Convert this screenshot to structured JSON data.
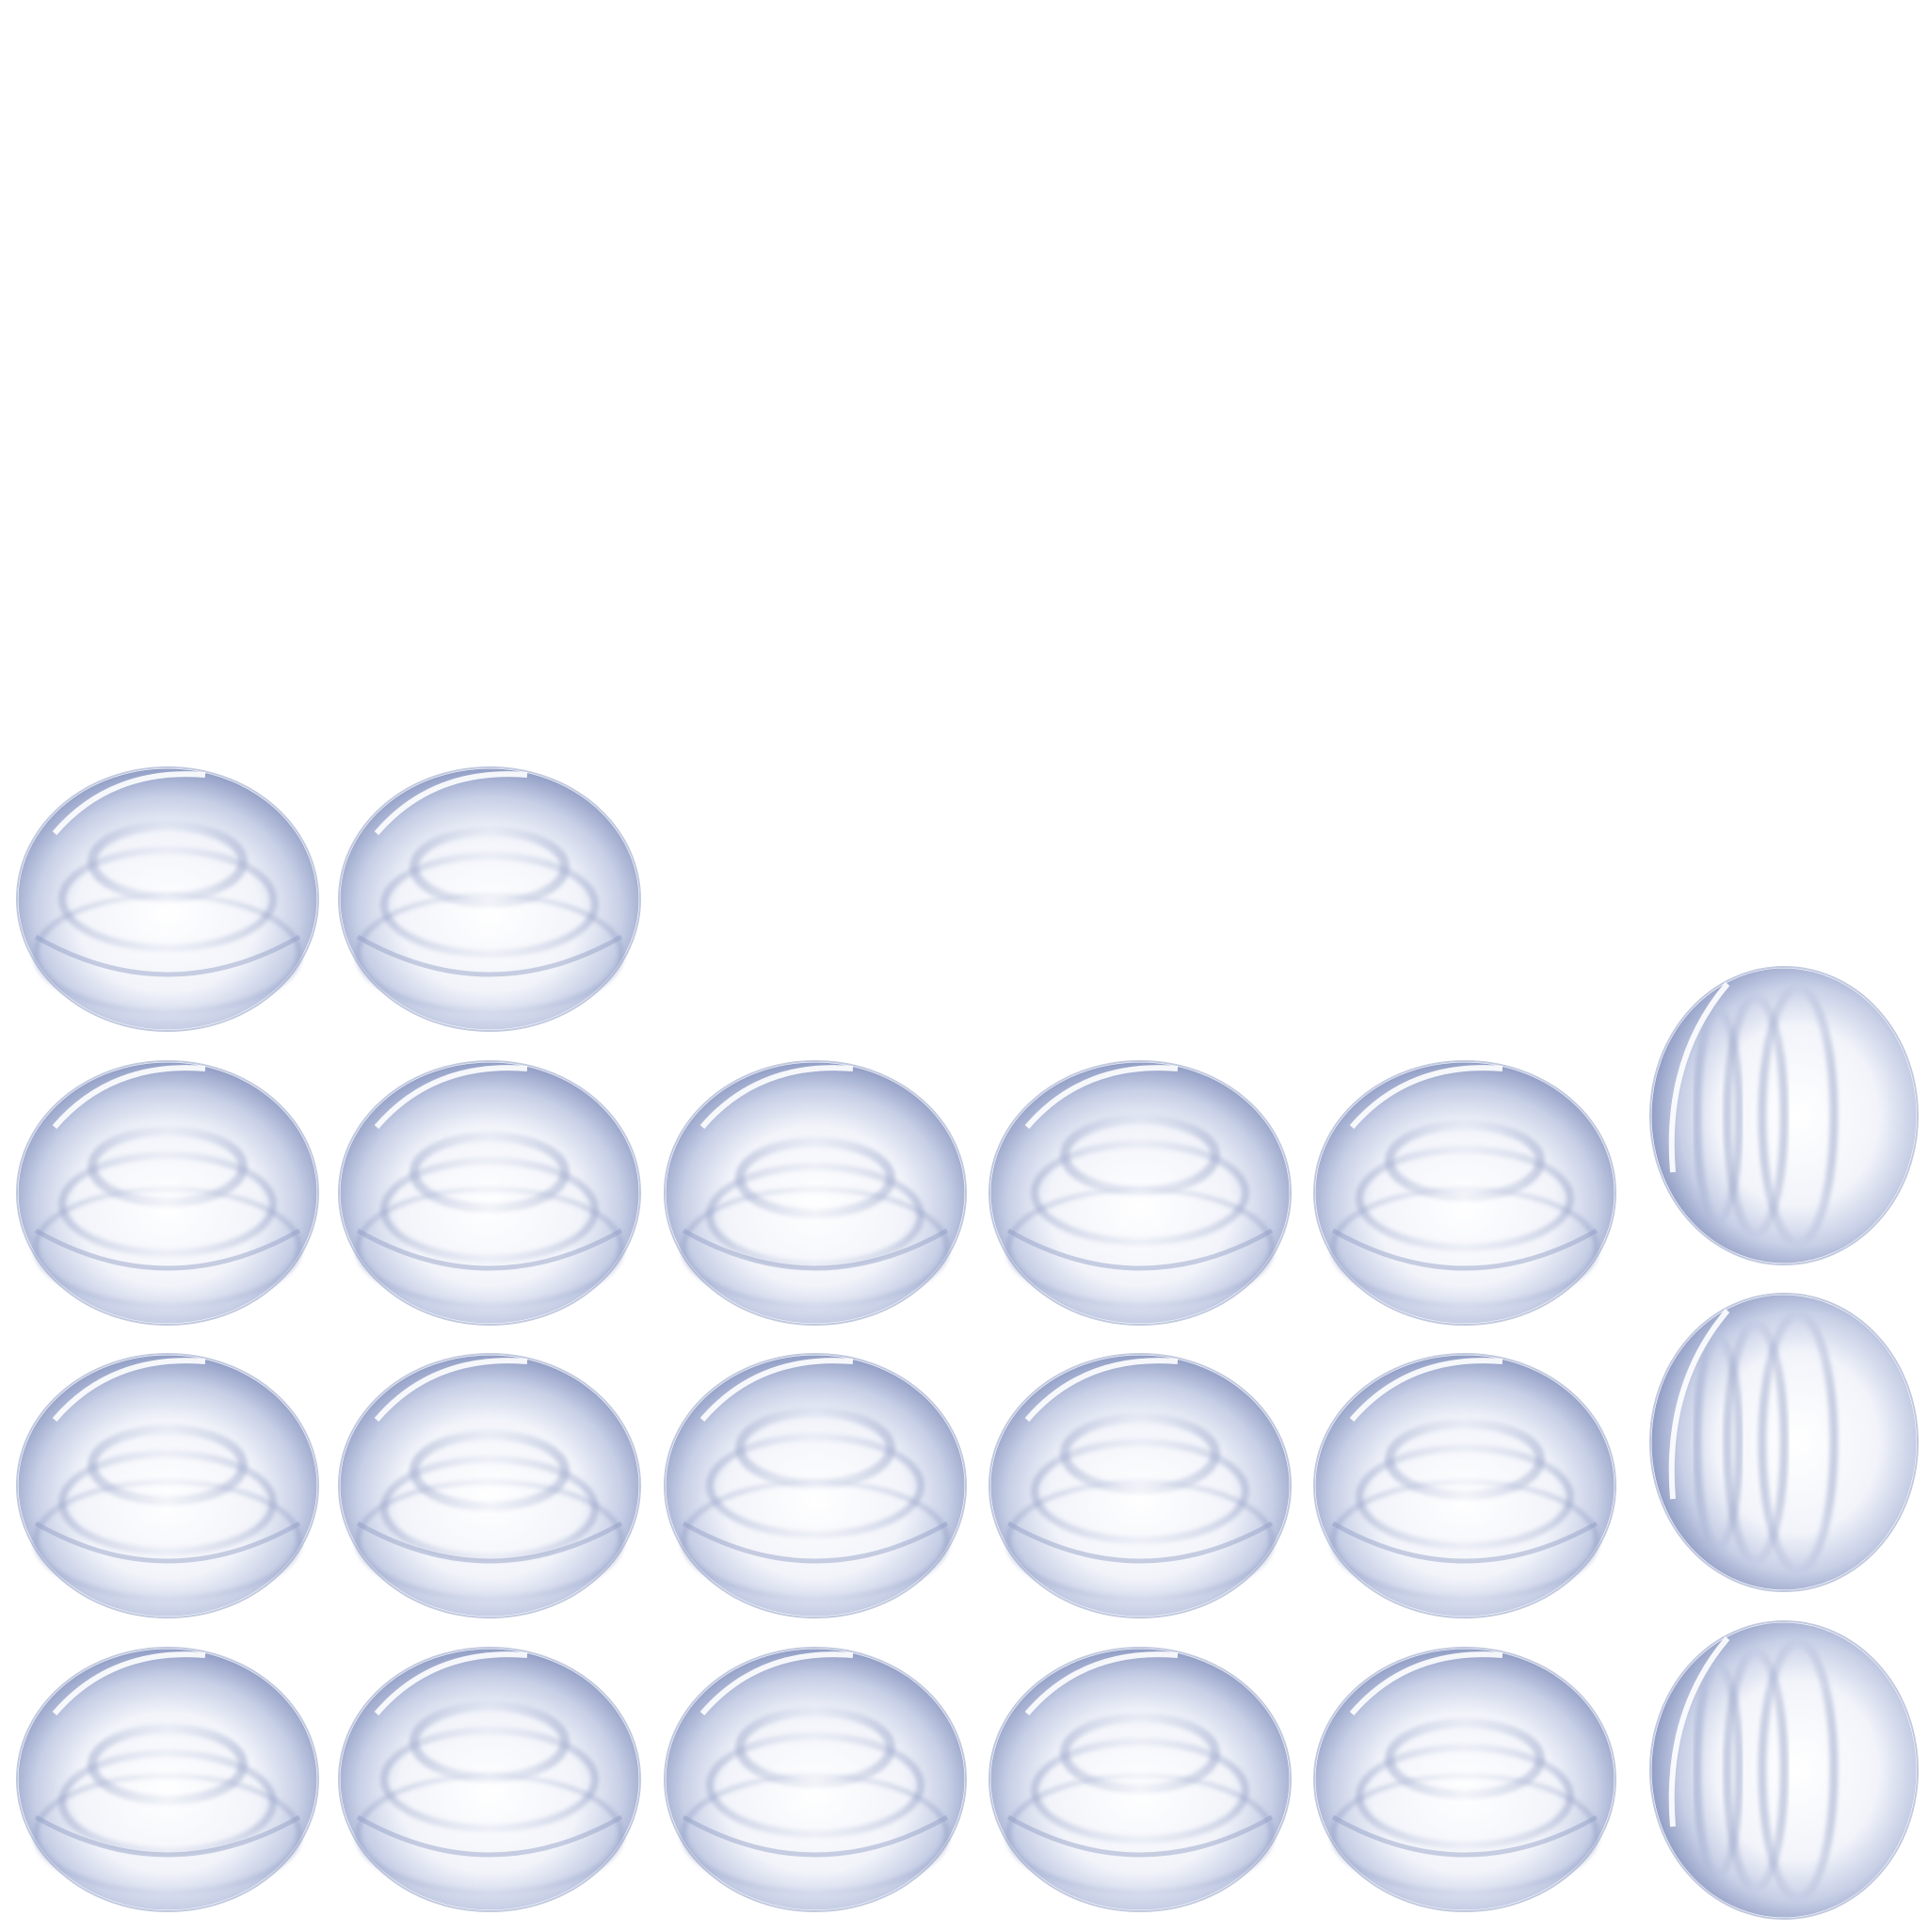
{
  "sheet": {
    "name": "glass-dome-sprite-sheet",
    "background_color": "#ffffff",
    "tint_color": "#8f9cc4",
    "highlight_color": "#ffffff"
  },
  "sprites": [
    {
      "id": "dome-r1-c1",
      "view": "upright"
    },
    {
      "id": "dome-r1-c2",
      "view": "upright"
    },
    {
      "id": "dome-r2-c1",
      "view": "upright"
    },
    {
      "id": "dome-r2-c2",
      "view": "upright"
    },
    {
      "id": "dome-r2-c3",
      "view": "upright"
    },
    {
      "id": "dome-r2-c4",
      "view": "upright"
    },
    {
      "id": "dome-r2-c5",
      "view": "upright"
    },
    {
      "id": "dome-r2-c6",
      "view": "side"
    },
    {
      "id": "dome-r3-c1",
      "view": "upright"
    },
    {
      "id": "dome-r3-c2",
      "view": "upright"
    },
    {
      "id": "dome-r3-c3",
      "view": "upright"
    },
    {
      "id": "dome-r3-c4",
      "view": "upright"
    },
    {
      "id": "dome-r3-c5",
      "view": "upright"
    },
    {
      "id": "dome-r3-c6",
      "view": "side"
    },
    {
      "id": "dome-r4-c1",
      "view": "upright"
    },
    {
      "id": "dome-r4-c2",
      "view": "upright"
    },
    {
      "id": "dome-r4-c3",
      "view": "upright"
    },
    {
      "id": "dome-r4-c4",
      "view": "upright"
    },
    {
      "id": "dome-r4-c5",
      "view": "upright"
    },
    {
      "id": "dome-r4-c6",
      "view": "side"
    }
  ]
}
